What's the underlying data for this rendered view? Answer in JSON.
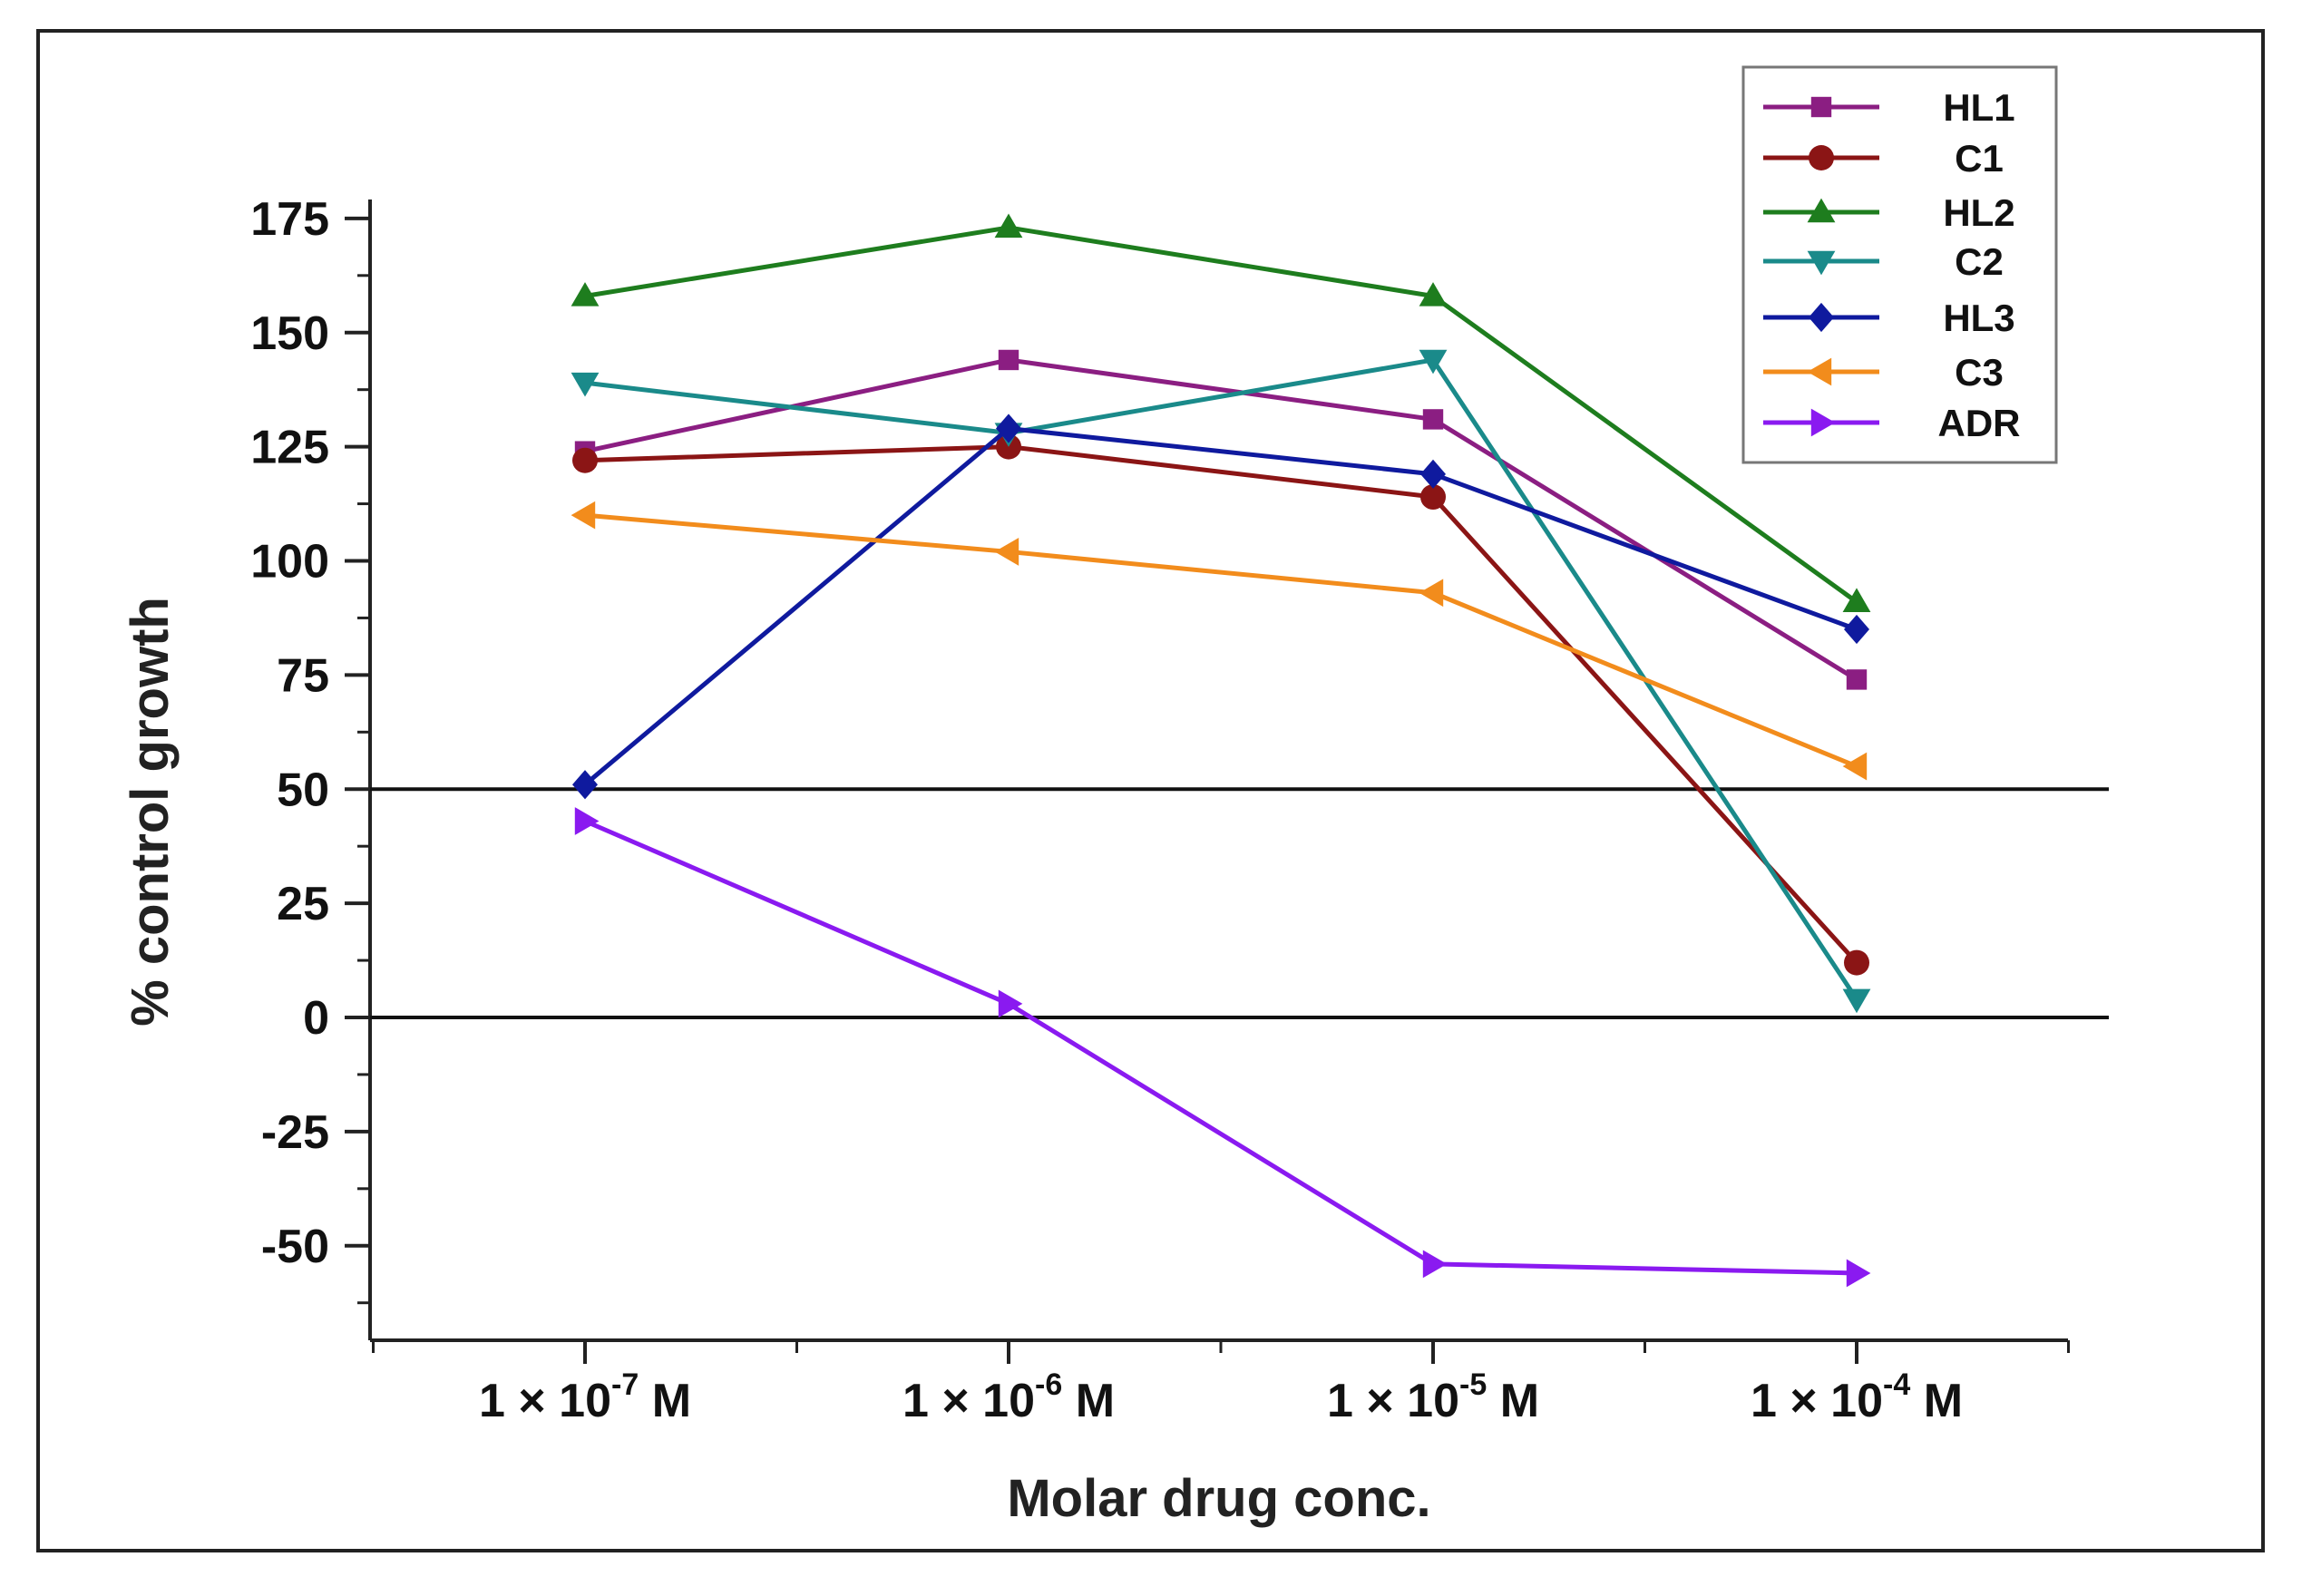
{
  "chart_data": {
    "type": "line",
    "title": "",
    "xlabel": "Molar drug conc.",
    "ylabel": "% control growth",
    "ylim": [
      -70,
      185
    ],
    "yticks": [
      175,
      150,
      125,
      100,
      75,
      50,
      25,
      0,
      -25,
      -50
    ],
    "yticklabels": [
      "175",
      "150",
      "125",
      "100",
      "75",
      "50",
      "25",
      "0",
      "-25",
      "-50"
    ],
    "x": [
      {
        "mantissa": "1 × 10",
        "exp": "-7",
        "unit": "M"
      },
      {
        "mantissa": "1 × 10",
        "exp": "-6",
        "unit": "M"
      },
      {
        "mantissa": "1 × 10",
        "exp": "-5",
        "unit": "M"
      },
      {
        "mantissa": "1 × 10",
        "exp": "-4",
        "unit": "M"
      }
    ],
    "reference_lines": [
      50,
      0
    ],
    "legend_position": "top-right",
    "series": [
      {
        "name": "HL1",
        "color": "#8B1E82",
        "marker": "square",
        "values": [
          124,
          144,
          131,
          74
        ]
      },
      {
        "name": "C1",
        "color": "#8B1515",
        "marker": "circle",
        "values": [
          122,
          125,
          114,
          12
        ]
      },
      {
        "name": "HL2",
        "color": "#1E7D1E",
        "marker": "triangle-up",
        "values": [
          158,
          173,
          158,
          91
        ]
      },
      {
        "name": "C2",
        "color": "#1A8A8A",
        "marker": "triangle-down",
        "values": [
          139,
          128,
          144,
          4
        ]
      },
      {
        "name": "HL3",
        "color": "#0F1A9E",
        "marker": "diamond",
        "values": [
          51,
          129,
          119,
          85
        ]
      },
      {
        "name": "C3",
        "color": "#F28C1C",
        "marker": "triangle-left",
        "values": [
          110,
          102,
          93,
          55
        ]
      },
      {
        "name": "ADR",
        "color": "#8A1AF0",
        "marker": "triangle-right",
        "values": [
          43,
          3,
          -54,
          -56
        ]
      }
    ]
  }
}
